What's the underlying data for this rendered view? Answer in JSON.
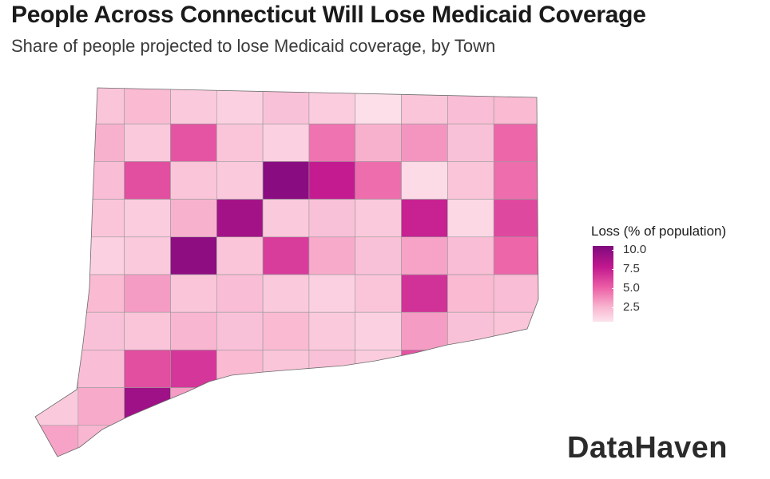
{
  "header": {
    "title": "People Across Connecticut Will Lose Medicaid Coverage",
    "subtitle": "Share of people projected to lose Medicaid coverage, by Town"
  },
  "legend": {
    "title": "Loss (% of population)",
    "ticks": [
      "10.0",
      "7.5",
      "5.0",
      "2.5"
    ],
    "scale_min": 1.0,
    "scale_max": 11.0,
    "colors": [
      "#fde3ec",
      "#f8b4cf",
      "#ec5fa6",
      "#c2188f",
      "#7e0a7d"
    ]
  },
  "logo": {
    "text": "DataHaven"
  },
  "chart_data": {
    "type": "choropleth",
    "value_name": "Loss (% of population)",
    "towns": [
      [
        1.8,
        2.6,
        3.2,
        2.4,
        2.0,
        2.8,
        2.2,
        1.2,
        2.6,
        3.0,
        3.2
      ],
      [
        2.2,
        3.6,
        2.4,
        6.4,
        2.6,
        2.0,
        5.4,
        3.6,
        4.4,
        2.8,
        5.8
      ],
      [
        2.4,
        3.0,
        6.6,
        2.6,
        2.4,
        10.6,
        8.4,
        5.6,
        1.4,
        2.6,
        5.6
      ],
      [
        2.0,
        2.6,
        2.2,
        3.6,
        9.6,
        2.4,
        2.8,
        2.4,
        8.2,
        1.6,
        6.8
      ],
      [
        3.4,
        2.0,
        2.4,
        10.4,
        2.6,
        7.2,
        3.8,
        2.8,
        4.0,
        3.0,
        5.8
      ],
      [
        2.2,
        3.2,
        4.2,
        2.6,
        3.0,
        2.4,
        2.0,
        2.6,
        7.6,
        3.2,
        3.0
      ],
      [
        5.8,
        2.8,
        2.6,
        3.4,
        2.8,
        3.2,
        2.4,
        2.0,
        4.2,
        2.8,
        2.6
      ],
      [
        2.0,
        3.0,
        6.6,
        7.4,
        3.2,
        2.6,
        2.8,
        2.2,
        6.4,
        3.4,
        3.0
      ],
      [
        2.4,
        3.8,
        9.8,
        4.2,
        2.6,
        2.2,
        2.4,
        2.8,
        1.8,
        2.0,
        2.4
      ],
      [
        4.0,
        3.4,
        4.8,
        2.4,
        3.0,
        2.6,
        2.0,
        1.8,
        2.2,
        2.6,
        2.0
      ]
    ]
  }
}
